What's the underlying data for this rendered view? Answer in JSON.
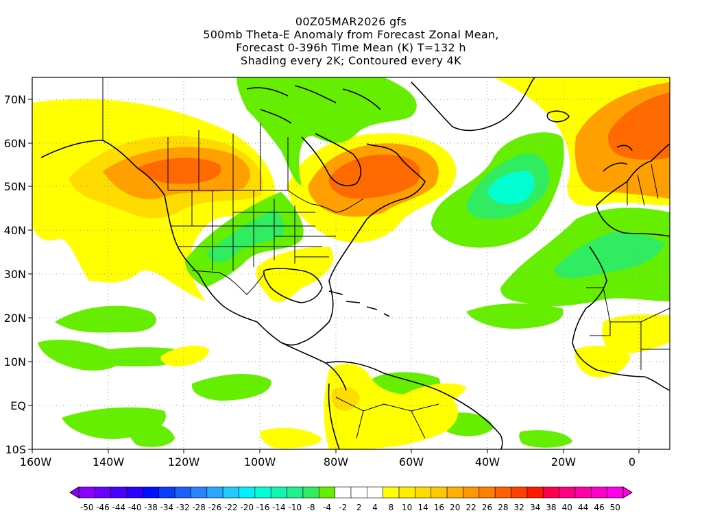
{
  "title": {
    "line1": "00Z05MAR2026 gfs",
    "line2": "500mb Theta-E Anomaly from Forecast Zonal Mean,",
    "line3": "Forecast 0-396h Time Mean (K) T=132 h",
    "line4": "Shading every 2K; Contoured every 4K"
  },
  "axes": {
    "lon_labels": [
      "160W",
      "140W",
      "120W",
      "100W",
      "80W",
      "60W",
      "40W",
      "20W",
      "0"
    ],
    "lat_labels": [
      "70N",
      "60N",
      "50N",
      "40N",
      "30N",
      "20N",
      "10N",
      "EQ",
      "10S"
    ]
  },
  "colorbar": {
    "labels": [
      "-50",
      "-46",
      "-44",
      "-40",
      "-38",
      "-34",
      "-32",
      "-28",
      "-26",
      "-22",
      "-20",
      "-16",
      "-14",
      "-10",
      "-8",
      "-4",
      "-2",
      "2",
      "4",
      "8",
      "10",
      "14",
      "16",
      "20",
      "22",
      "26",
      "28",
      "32",
      "34",
      "38",
      "40",
      "44",
      "46",
      "50"
    ],
    "colors": [
      "#8a00ff",
      "#6a00ff",
      "#4b00ff",
      "#2e00ff",
      "#0010ff",
      "#0a3cff",
      "#1a60ff",
      "#2a84ff",
      "#2aa8ff",
      "#20ccff",
      "#00f0ff",
      "#00ffd8",
      "#10f8b0",
      "#20f090",
      "#30ec60",
      "#66ee00",
      "#ffffff",
      "#ffffff",
      "#ffffff",
      "#ffff00",
      "#ffee00",
      "#ffdc00",
      "#ffc800",
      "#ffb000",
      "#ff9800",
      "#ff8000",
      "#ff6000",
      "#ff4000",
      "#ff1a00",
      "#ff0050",
      "#ff0080",
      "#ff00a8",
      "#ff00cc",
      "#ff00e8"
    ]
  },
  "map": {
    "fill_colors": {
      "yellow": "#ffff00",
      "gold": "#ffdc00",
      "orange": "#ffa000",
      "dark_orange": "#ff6a00",
      "green": "#66ee00",
      "mid_green": "#30ec60",
      "teal": "#00ffd0"
    }
  }
}
